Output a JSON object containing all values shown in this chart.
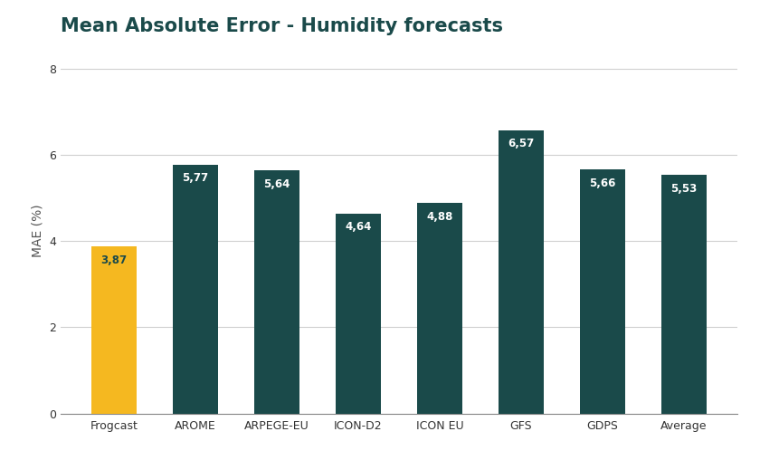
{
  "title": "Mean Absolute Error - Humidity forecasts",
  "ylabel": "MAE (%)",
  "categories": [
    "Frogcast",
    "AROME",
    "ARPEGE-EU",
    "ICON-D2",
    "ICON EU",
    "GFS",
    "GDPS",
    "Average"
  ],
  "values": [
    3.87,
    5.77,
    5.64,
    4.64,
    4.88,
    6.57,
    5.66,
    5.53
  ],
  "bar_colors": [
    "#F5B820",
    "#1A4A4A",
    "#1A4A4A",
    "#1A4A4A",
    "#1A4A4A",
    "#1A4A4A",
    "#1A4A4A",
    "#1A4A4A"
  ],
  "label_color_0": "#1A4A4A",
  "label_color_rest": "#ffffff",
  "background_color": "#ffffff",
  "title_color": "#1A4A4A",
  "ylabel_color": "#555555",
  "tick_color": "#333333",
  "ylim": [
    0,
    8.5
  ],
  "yticks": [
    0,
    2,
    4,
    6,
    8
  ],
  "grid_color": "#d0d0d0",
  "title_fontsize": 15,
  "label_fontsize": 8.5,
  "ylabel_fontsize": 10,
  "tick_fontsize": 9,
  "bar_width": 0.55
}
